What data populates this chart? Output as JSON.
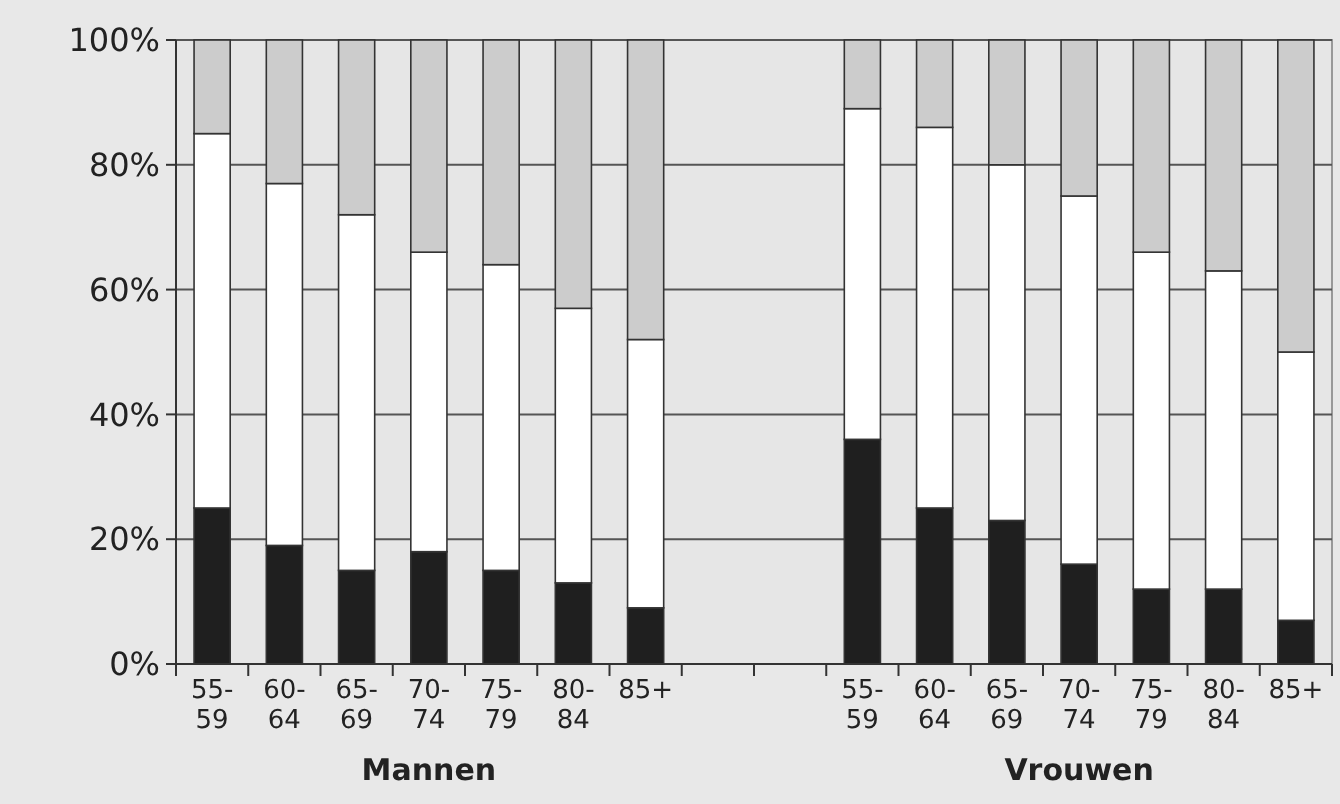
{
  "chart_data": {
    "type": "bar",
    "stacked": true,
    "categories": [
      "55-59",
      "60-64",
      "65-69",
      "70-74",
      "75-79",
      "80-84",
      "85+",
      null,
      null,
      "55-59",
      "60-64",
      "65-69",
      "70-74",
      "75-79",
      "80-84",
      "85+"
    ],
    "series": [
      {
        "color": "#1f1f1f",
        "values": [
          25,
          19,
          15,
          18,
          15,
          13,
          9,
          null,
          null,
          36,
          25,
          23,
          16,
          12,
          12,
          7
        ]
      },
      {
        "color": "#ffffff",
        "values": [
          60,
          58,
          57,
          48,
          49,
          44,
          43,
          null,
          null,
          53,
          61,
          57,
          59,
          54,
          51,
          43
        ]
      },
      {
        "color": "#cccccc",
        "values": [
          15,
          23,
          28,
          34,
          36,
          43,
          48,
          null,
          null,
          11,
          14,
          20,
          25,
          34,
          37,
          50
        ]
      }
    ],
    "ylim": [
      0,
      100
    ],
    "yticks": [
      {
        "value": 0,
        "label": "0%"
      },
      {
        "value": 20,
        "label": "20%"
      },
      {
        "value": 40,
        "label": "40%"
      },
      {
        "value": 60,
        "label": "60%"
      },
      {
        "value": 80,
        "label": "80%"
      },
      {
        "value": 100,
        "label": "100%"
      }
    ],
    "grid": "y",
    "annotations": [
      "Mannen",
      "Vrouwen"
    ]
  }
}
